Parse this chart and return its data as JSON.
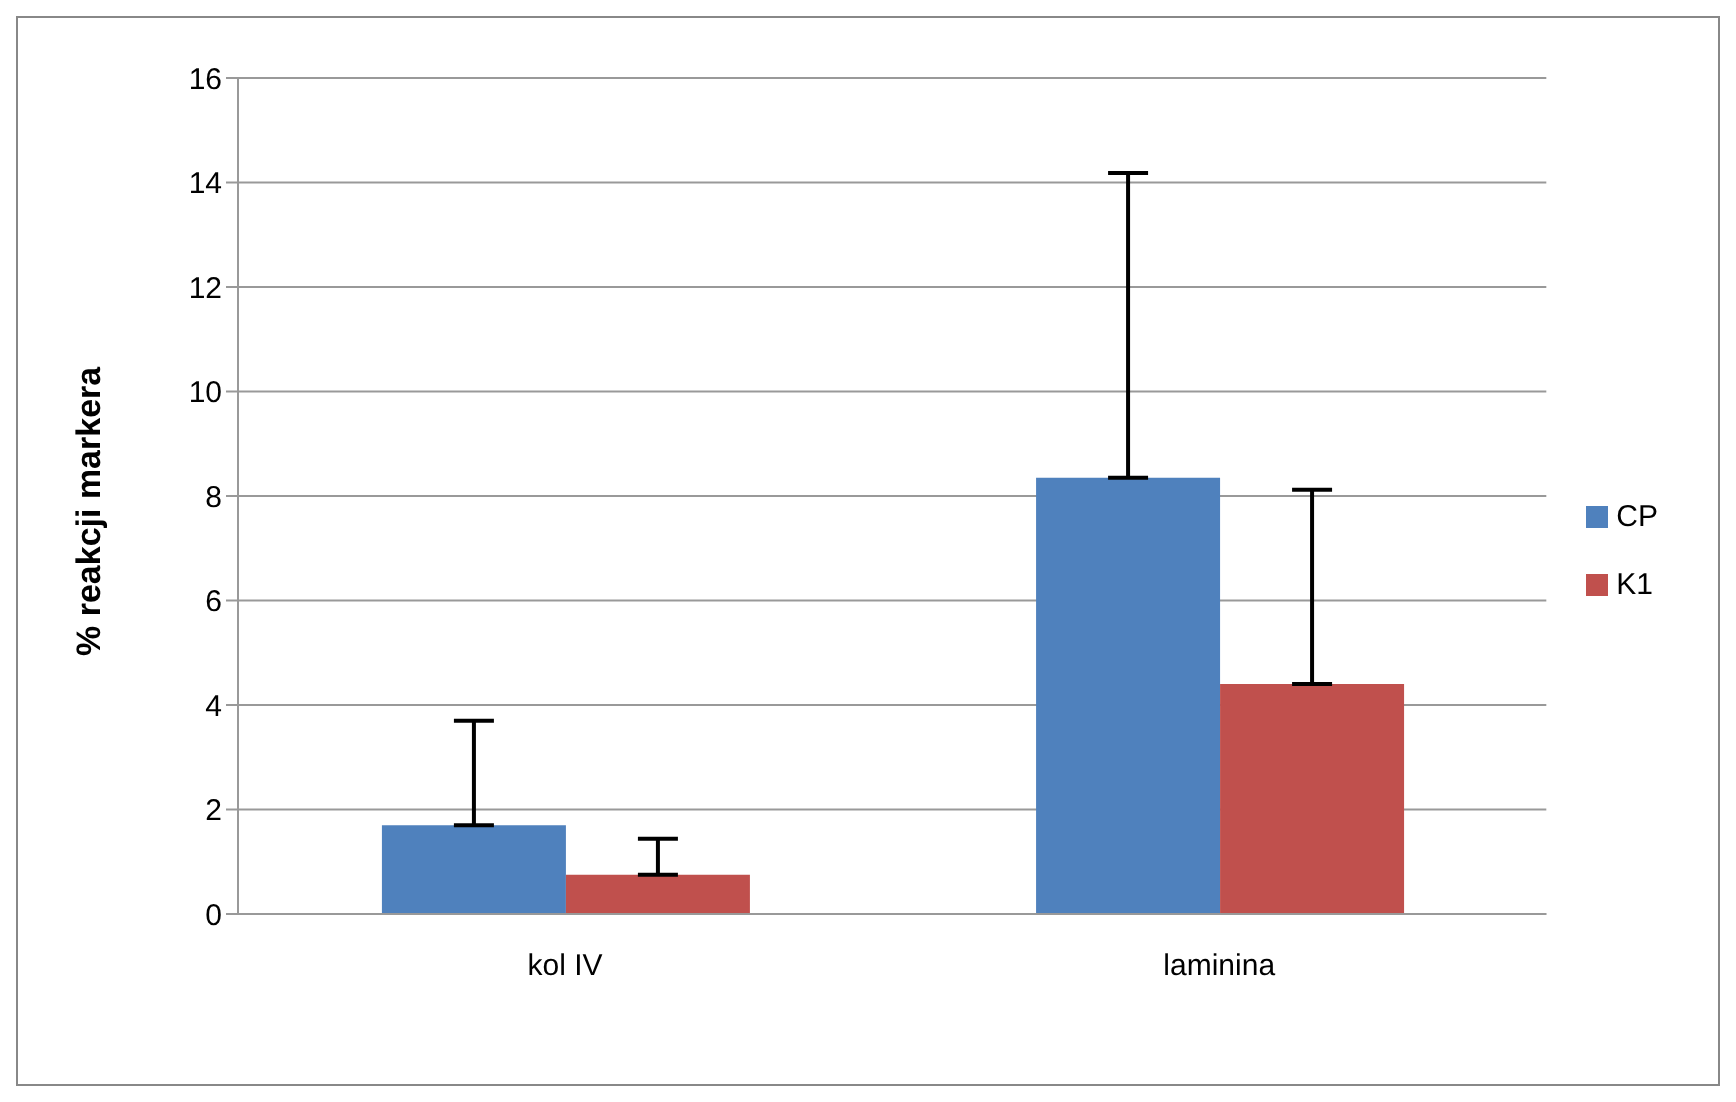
{
  "chart_data": {
    "type": "bar",
    "ylabel": "% reakcji markera",
    "categories": [
      "kol IV",
      "laminina"
    ],
    "series": [
      {
        "name": "CP",
        "color": "#4f81bd",
        "values": [
          1.7,
          8.35
        ],
        "errors": [
          [
            1.7,
            3.7
          ],
          [
            8.35,
            14.18
          ]
        ]
      },
      {
        "name": "K1",
        "color": "#c0504d",
        "values": [
          0.75,
          4.4
        ],
        "errors": [
          [
            0.75,
            1.44
          ],
          [
            4.4,
            8.12
          ]
        ]
      }
    ],
    "ylim": [
      0,
      16
    ],
    "yticks": [
      0,
      2,
      4,
      6,
      8,
      10,
      12,
      14,
      16
    ],
    "grid": "y",
    "legend": "right"
  }
}
